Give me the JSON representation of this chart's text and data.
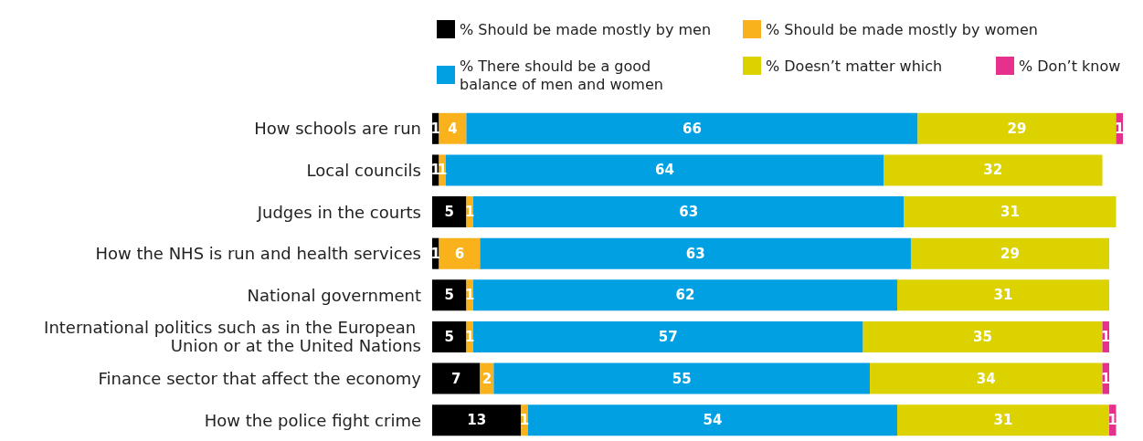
{
  "chart_data": {
    "type": "bar",
    "orientation": "horizontal",
    "stacked": true,
    "data_labels": true,
    "legend": "top right",
    "tick_labels": "y",
    "categories": [
      "How schools are run",
      "Local councils",
      "Judges in the courts",
      "How the NHS is run and health services",
      "National government",
      "International politics such as in the European Union or at the United Nations",
      "Finance sector that affect the economy",
      "How the police fight crime"
    ],
    "series": [
      {
        "name": "% Should be made mostly by men",
        "color": "#000000",
        "values": [
          1,
          1,
          5,
          1,
          5,
          5,
          7,
          13
        ]
      },
      {
        "name": "% Should be made mostly by women",
        "color": "#f9b21b",
        "values": [
          4,
          1,
          1,
          6,
          1,
          1,
          2,
          1
        ]
      },
      {
        "name": "% There should be a good balance of men and women",
        "color": "#00a0e3",
        "values": [
          66,
          64,
          63,
          63,
          62,
          57,
          55,
          54
        ]
      },
      {
        "name": "% Doesn’t matter which",
        "color": "#dcd200",
        "values": [
          29,
          32,
          31,
          29,
          31,
          35,
          34,
          31
        ]
      },
      {
        "name": "% Don’t know",
        "color": "#e5318b",
        "values": [
          1,
          null,
          null,
          null,
          null,
          1,
          1,
          1
        ]
      }
    ]
  }
}
